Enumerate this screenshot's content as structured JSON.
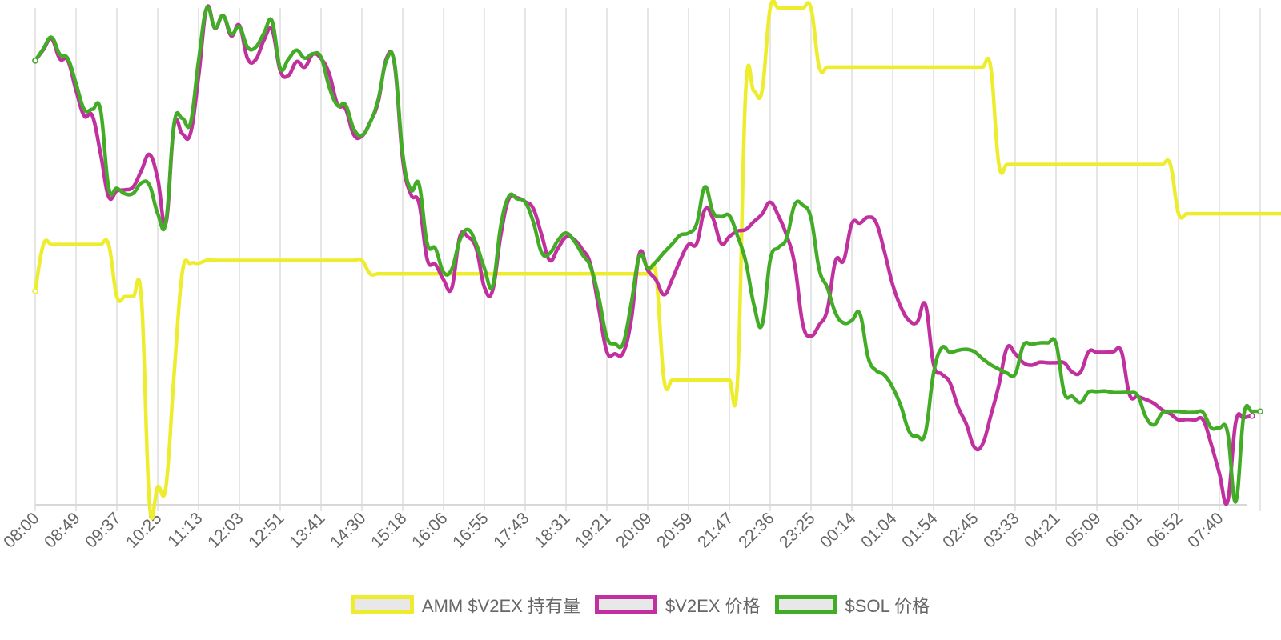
{
  "chart_data": {
    "type": "line",
    "x_labels": [
      "08:00",
      "08:49",
      "09:37",
      "10:25",
      "11:13",
      "12:03",
      "12:51",
      "13:41",
      "14:30",
      "15:18",
      "16:06",
      "16:55",
      "17:43",
      "18:31",
      "19:21",
      "20:09",
      "20:59",
      "21:47",
      "22:36",
      "23:25",
      "00:14",
      "01:04",
      "01:54",
      "02:45",
      "03:33",
      "04:21",
      "05:09",
      "06:01",
      "06:52",
      "07:40"
    ],
    "ylim": [
      0,
      100
    ],
    "y_axis_labels": "none",
    "grid": "vertical",
    "legend_position": "bottom",
    "series": [
      {
        "name": "AMM $V2EX 持有量",
        "color": "#eded2e",
        "values": [
          43,
          52.4,
          52.4,
          52.4,
          52.4,
          52.4,
          52.4,
          52.4,
          52.4,
          52.4,
          41.9,
          41.9,
          41.9,
          41.6,
          0,
          3.6,
          3.6,
          26.2,
          46.7,
          48.6,
          48.6,
          49.2,
          49.2,
          49.2,
          49.2,
          49.2,
          49.2,
          49.2,
          49.2,
          49.2,
          49.2,
          49.2,
          49.2,
          49.2,
          49.2,
          49.2,
          49.2,
          49.2,
          49.2,
          49.2,
          49.2,
          46.5,
          46.5,
          46.5,
          46.5,
          46.5,
          46.5,
          46.5,
          46.5,
          46.5,
          46.5,
          46.5,
          46.5,
          46.5,
          46.5,
          46.5,
          46.5,
          46.5,
          46.5,
          46.5,
          46.5,
          46.5,
          46.5,
          46.5,
          46.5,
          46.5,
          46.5,
          46.5,
          46.5,
          46.5,
          46.5,
          46.5,
          46.5,
          46.5,
          46.5,
          46.5,
          46.5,
          25.1,
          25.1,
          25.1,
          25.1,
          25.1,
          25.1,
          25.1,
          25.1,
          25.1,
          25.1,
          83.3,
          83.3,
          83.3,
          100,
          100,
          100,
          100,
          100,
          100,
          88.1,
          88.1,
          88.1,
          88.1,
          88.1,
          88.1,
          88.1,
          88.1,
          88.1,
          88.1,
          88.1,
          88.1,
          88.1,
          88.1,
          88.1,
          88.1,
          88.1,
          88.1,
          88.1,
          88.1,
          88.1,
          88.1,
          68.5,
          68.5,
          68.5,
          68.5,
          68.5,
          68.5,
          68.5,
          68.5,
          68.5,
          68.5,
          68.5,
          68.5,
          68.5,
          68.5,
          68.5,
          68.5,
          68.5,
          68.5,
          68.5,
          68.5,
          68.5,
          68.5,
          58.6,
          58.6,
          58.6,
          58.6,
          58.6,
          58.6,
          58.6,
          58.6,
          58.6,
          58.6,
          58.6,
          58.6,
          58.6,
          58.6,
          58.6,
          58.6,
          58.6,
          58.6,
          58.6,
          58.6,
          45,
          45,
          45
        ]
      },
      {
        "name": "$V2EX 价格",
        "color": "#c0309f",
        "values": [
          89.4,
          91.6,
          93.8,
          89.8,
          89.4,
          83.4,
          78.3,
          78.3,
          70.7,
          62,
          63.2,
          63.4,
          64,
          67.3,
          70.5,
          65.6,
          56.7,
          76.3,
          74.7,
          74.7,
          86.2,
          100,
          95.9,
          98.5,
          94.4,
          96.5,
          89.8,
          89.6,
          93.5,
          95.6,
          87.4,
          86.4,
          89.2,
          88.1,
          90.7,
          89.8,
          86.8,
          80.7,
          79.7,
          74.5,
          74.2,
          77,
          81.1,
          89.8,
          88.6,
          69.5,
          62.5,
          60.7,
          49.4,
          48.4,
          45.3,
          43.6,
          54,
          53.9,
          51.6,
          43.8,
          43.1,
          54.2,
          61.6,
          61.8,
          61,
          59.6,
          54.4,
          49.2,
          51.6,
          53.9,
          53.4,
          51.4,
          48.4,
          39.6,
          30.8,
          30.4,
          30.6,
          37.4,
          50.6,
          47.2,
          45.3,
          42.3,
          45.4,
          49.3,
          52.4,
          52.6,
          59.4,
          57.6,
          52.6,
          54,
          55.1,
          55.4,
          57,
          58.5,
          60.9,
          58.2,
          54.3,
          48.4,
          36.3,
          34,
          36.2,
          39.3,
          49.1,
          49.2,
          56.6,
          56.7,
          57.9,
          56.7,
          50.9,
          44.3,
          39.8,
          37.1,
          36.8,
          40.3,
          28.3,
          26.3,
          24.6,
          19.7,
          16.3,
          11.6,
          12.2,
          17.9,
          24.1,
          31.6,
          30.4,
          28.6,
          28.1,
          28.7,
          28.6,
          28.6,
          28.6,
          26.7,
          26.7,
          30.8,
          30.7,
          30.7,
          30.8,
          30.9,
          22.2,
          21.8,
          21.2,
          20.4,
          19.1,
          18.3,
          17.1,
          17.2,
          17.1,
          17.1,
          12.2,
          6.3,
          0.6,
          16.6,
          17.5,
          17.9
        ]
      },
      {
        "name": "$SOL 价格",
        "color": "#43ac27",
        "values": [
          89.4,
          91.8,
          94.1,
          90.7,
          89.8,
          84.8,
          79.6,
          79.6,
          79.5,
          63.8,
          63.7,
          62.6,
          62.7,
          64.8,
          64.3,
          58.6,
          56.9,
          76.7,
          77.8,
          76.8,
          89.4,
          100,
          96,
          98.5,
          94.8,
          96.2,
          92.1,
          92.1,
          94.9,
          97.4,
          87.9,
          89.7,
          91.5,
          89.9,
          90.8,
          90.1,
          84.1,
          80.4,
          80.5,
          75.7,
          74.4,
          76.9,
          81.6,
          89.4,
          88.9,
          70.6,
          63.4,
          64.5,
          52.6,
          51.6,
          46.8,
          47.4,
          53.3,
          55.4,
          52.5,
          47.6,
          44,
          56.1,
          62.1,
          61.6,
          60.9,
          56.9,
          50.8,
          50.6,
          53.2,
          54.7,
          53.1,
          50.4,
          47.9,
          41.8,
          33.7,
          32.4,
          32.5,
          40.7,
          50.1,
          47.7,
          48.9,
          50.8,
          52.5,
          54.3,
          54.7,
          56.6,
          64,
          58.9,
          58,
          58.2,
          54.1,
          49,
          40.3,
          36.2,
          49.3,
          51.8,
          53.6,
          60.4,
          60.3,
          57.7,
          47.4,
          43.7,
          38.6,
          36.6,
          37.1,
          38.4,
          29.6,
          27,
          26.1,
          23.6,
          19.9,
          14.8,
          13.8,
          14.5,
          26.5,
          31.6,
          30.7,
          31.1,
          31.3,
          30.8,
          29.4,
          28.2,
          27.3,
          26.5,
          26.3,
          32.1,
          32.3,
          32.6,
          32.6,
          32.5,
          22.6,
          21.8,
          20.6,
          22.7,
          22.8,
          22.9,
          22.6,
          22.6,
          22.6,
          22,
          17.7,
          16.1,
          18.5,
          18.8,
          18.8,
          18.6,
          18.6,
          18.6,
          15.5,
          15.5,
          14.6,
          0.6,
          18.2,
          18.8,
          18.8
        ]
      }
    ]
  }
}
